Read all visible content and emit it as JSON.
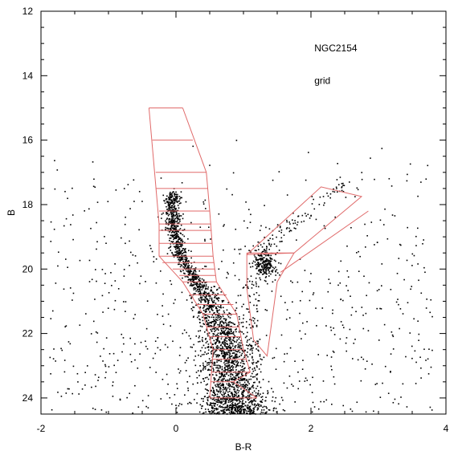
{
  "chart_data": {
    "type": "scatter",
    "xlabel": "B-R",
    "ylabel": "B",
    "xlim": [
      -2,
      4
    ],
    "ylim": [
      24.5,
      12
    ],
    "y_inverted": true,
    "x_ticks": [
      -2,
      0,
      2,
      4
    ],
    "x_tick_labels": [
      "-2",
      "0",
      "2",
      "4"
    ],
    "y_ticks": [
      12,
      14,
      16,
      18,
      20,
      22,
      24
    ],
    "y_tick_labels": [
      "12",
      "14",
      "16",
      "18",
      "20",
      "22",
      "24"
    ],
    "grid": false,
    "annotations": [
      {
        "text": "NGC2154",
        "x": 2.05,
        "y": 13.15
      },
      {
        "text": "grid",
        "x": 2.05,
        "y": 14.15
      }
    ],
    "colors": {
      "points": "#000000",
      "grid_overlay": "#e06a6a",
      "frame": "#000000"
    },
    "point_groups": [
      {
        "description_key": "main_sequence",
        "count": 2600
      },
      {
        "description_key": "red_clump",
        "count": 220
      },
      {
        "description_key": "rgb_branch",
        "count": 160
      },
      {
        "description_key": "field",
        "count": 700
      }
    ],
    "overlay_grid": {
      "ms_left_edge": [
        [
          -0.4,
          15.0
        ],
        [
          -0.25,
          18.6
        ],
        [
          -0.25,
          19.6
        ],
        [
          0.1,
          20.4
        ],
        [
          0.4,
          21.4
        ],
        [
          0.55,
          22.5
        ],
        [
          0.5,
          24.0
        ]
      ],
      "ms_right_edge": [
        [
          0.1,
          15.0
        ],
        [
          0.45,
          17.0
        ],
        [
          0.5,
          18.2
        ],
        [
          0.55,
          19.6
        ],
        [
          0.6,
          20.4
        ],
        [
          0.9,
          21.4
        ],
        [
          1.0,
          22.5
        ],
        [
          1.1,
          23.2
        ],
        [
          0.85,
          23.5
        ],
        [
          1.2,
          24.0
        ]
      ],
      "ms_rows": [
        [
          [
            -0.4,
            15.0
          ],
          [
            0.1,
            15.0
          ]
        ],
        [
          [
            -0.35,
            16.0
          ],
          [
            0.25,
            16.0
          ]
        ],
        [
          [
            -0.3,
            17.0
          ],
          [
            0.45,
            17.0
          ]
        ],
        [
          [
            -0.3,
            17.5
          ],
          [
            0.47,
            17.5
          ]
        ],
        [
          [
            -0.25,
            18.2
          ],
          [
            0.5,
            18.2
          ]
        ],
        [
          [
            -0.25,
            18.6
          ],
          [
            0.52,
            18.6
          ]
        ],
        [
          [
            -0.25,
            18.8
          ],
          [
            0.53,
            18.8
          ]
        ],
        [
          [
            -0.25,
            19.2
          ],
          [
            0.54,
            19.2
          ]
        ],
        [
          [
            -0.25,
            19.6
          ],
          [
            0.55,
            19.6
          ]
        ],
        [
          [
            -0.2,
            19.8
          ],
          [
            0.56,
            19.8
          ]
        ],
        [
          [
            -0.05,
            20.0
          ],
          [
            0.58,
            20.0
          ]
        ],
        [
          [
            0.05,
            20.2
          ],
          [
            0.59,
            20.2
          ]
        ],
        [
          [
            0.1,
            20.4
          ],
          [
            0.6,
            20.4
          ]
        ],
        [
          [
            0.2,
            20.8
          ],
          [
            0.75,
            20.8
          ]
        ],
        [
          [
            0.3,
            21.1
          ],
          [
            0.85,
            21.1
          ]
        ],
        [
          [
            0.4,
            21.4
          ],
          [
            0.9,
            21.4
          ]
        ],
        [
          [
            0.45,
            21.8
          ],
          [
            0.93,
            21.8
          ]
        ],
        [
          [
            0.5,
            22.1
          ],
          [
            0.97,
            22.1
          ]
        ],
        [
          [
            0.55,
            22.5
          ],
          [
            1.0,
            22.5
          ]
        ],
        [
          [
            0.53,
            22.8
          ],
          [
            1.05,
            22.8
          ]
        ],
        [
          [
            0.52,
            23.2
          ],
          [
            1.1,
            23.2
          ]
        ],
        [
          [
            0.51,
            23.5
          ],
          [
            0.85,
            23.5
          ]
        ],
        [
          [
            0.5,
            24.0
          ],
          [
            1.2,
            24.0
          ]
        ]
      ],
      "rgb_outline": [
        [
          1.05,
          19.55
        ],
        [
          2.15,
          17.45
        ],
        [
          2.75,
          17.75
        ],
        [
          1.75,
          19.5
        ],
        [
          1.05,
          19.55
        ]
      ],
      "clump_box": [
        [
          1.05,
          19.5
        ],
        [
          1.75,
          19.5
        ],
        [
          1.5,
          20.4
        ],
        [
          1.35,
          22.7
        ],
        [
          1.15,
          22.2
        ],
        [
          1.05,
          20.6
        ],
        [
          1.05,
          19.5
        ]
      ],
      "rgb_extension": [
        [
          1.55,
          20.1
        ],
        [
          2.85,
          18.2
        ]
      ]
    }
  }
}
